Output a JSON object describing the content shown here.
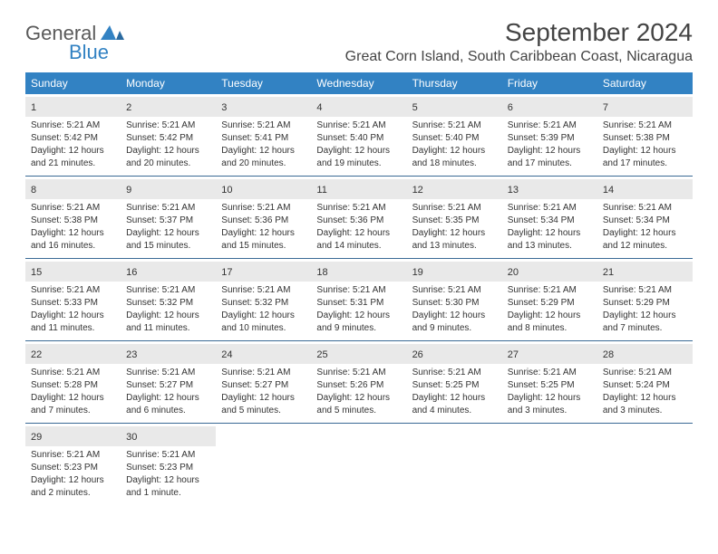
{
  "brand": {
    "name_general": "General",
    "name_blue": "Blue"
  },
  "title": "September 2024",
  "location": "Great Corn Island, South Caribbean Coast, Nicaragua",
  "weekdays": [
    "Sunday",
    "Monday",
    "Tuesday",
    "Wednesday",
    "Thursday",
    "Friday",
    "Saturday"
  ],
  "colors": {
    "header_bg": "#3282c3",
    "header_text": "#ffffff",
    "daynum_bg": "#e9e9e9",
    "week_divider": "#3a6a95",
    "page_bg": "#ffffff",
    "text": "#333333",
    "logo_gray": "#5a5a5a",
    "logo_blue": "#3282c3"
  },
  "typography": {
    "month_title_pt": 28,
    "location_pt": 16,
    "weekday_pt": 12,
    "daynum_pt": 11,
    "body_pt": 10
  },
  "grid": {
    "leading_blanks": 0,
    "rows": 5,
    "cols": 7
  },
  "days": [
    {
      "n": "1",
      "sunrise": "5:21 AM",
      "sunset": "5:42 PM",
      "daylight": "12 hours and 21 minutes."
    },
    {
      "n": "2",
      "sunrise": "5:21 AM",
      "sunset": "5:42 PM",
      "daylight": "12 hours and 20 minutes."
    },
    {
      "n": "3",
      "sunrise": "5:21 AM",
      "sunset": "5:41 PM",
      "daylight": "12 hours and 20 minutes."
    },
    {
      "n": "4",
      "sunrise": "5:21 AM",
      "sunset": "5:40 PM",
      "daylight": "12 hours and 19 minutes."
    },
    {
      "n": "5",
      "sunrise": "5:21 AM",
      "sunset": "5:40 PM",
      "daylight": "12 hours and 18 minutes."
    },
    {
      "n": "6",
      "sunrise": "5:21 AM",
      "sunset": "5:39 PM",
      "daylight": "12 hours and 17 minutes."
    },
    {
      "n": "7",
      "sunrise": "5:21 AM",
      "sunset": "5:38 PM",
      "daylight": "12 hours and 17 minutes."
    },
    {
      "n": "8",
      "sunrise": "5:21 AM",
      "sunset": "5:38 PM",
      "daylight": "12 hours and 16 minutes."
    },
    {
      "n": "9",
      "sunrise": "5:21 AM",
      "sunset": "5:37 PM",
      "daylight": "12 hours and 15 minutes."
    },
    {
      "n": "10",
      "sunrise": "5:21 AM",
      "sunset": "5:36 PM",
      "daylight": "12 hours and 15 minutes."
    },
    {
      "n": "11",
      "sunrise": "5:21 AM",
      "sunset": "5:36 PM",
      "daylight": "12 hours and 14 minutes."
    },
    {
      "n": "12",
      "sunrise": "5:21 AM",
      "sunset": "5:35 PM",
      "daylight": "12 hours and 13 minutes."
    },
    {
      "n": "13",
      "sunrise": "5:21 AM",
      "sunset": "5:34 PM",
      "daylight": "12 hours and 13 minutes."
    },
    {
      "n": "14",
      "sunrise": "5:21 AM",
      "sunset": "5:34 PM",
      "daylight": "12 hours and 12 minutes."
    },
    {
      "n": "15",
      "sunrise": "5:21 AM",
      "sunset": "5:33 PM",
      "daylight": "12 hours and 11 minutes."
    },
    {
      "n": "16",
      "sunrise": "5:21 AM",
      "sunset": "5:32 PM",
      "daylight": "12 hours and 11 minutes."
    },
    {
      "n": "17",
      "sunrise": "5:21 AM",
      "sunset": "5:32 PM",
      "daylight": "12 hours and 10 minutes."
    },
    {
      "n": "18",
      "sunrise": "5:21 AM",
      "sunset": "5:31 PM",
      "daylight": "12 hours and 9 minutes."
    },
    {
      "n": "19",
      "sunrise": "5:21 AM",
      "sunset": "5:30 PM",
      "daylight": "12 hours and 9 minutes."
    },
    {
      "n": "20",
      "sunrise": "5:21 AM",
      "sunset": "5:29 PM",
      "daylight": "12 hours and 8 minutes."
    },
    {
      "n": "21",
      "sunrise": "5:21 AM",
      "sunset": "5:29 PM",
      "daylight": "12 hours and 7 minutes."
    },
    {
      "n": "22",
      "sunrise": "5:21 AM",
      "sunset": "5:28 PM",
      "daylight": "12 hours and 7 minutes."
    },
    {
      "n": "23",
      "sunrise": "5:21 AM",
      "sunset": "5:27 PM",
      "daylight": "12 hours and 6 minutes."
    },
    {
      "n": "24",
      "sunrise": "5:21 AM",
      "sunset": "5:27 PM",
      "daylight": "12 hours and 5 minutes."
    },
    {
      "n": "25",
      "sunrise": "5:21 AM",
      "sunset": "5:26 PM",
      "daylight": "12 hours and 5 minutes."
    },
    {
      "n": "26",
      "sunrise": "5:21 AM",
      "sunset": "5:25 PM",
      "daylight": "12 hours and 4 minutes."
    },
    {
      "n": "27",
      "sunrise": "5:21 AM",
      "sunset": "5:25 PM",
      "daylight": "12 hours and 3 minutes."
    },
    {
      "n": "28",
      "sunrise": "5:21 AM",
      "sunset": "5:24 PM",
      "daylight": "12 hours and 3 minutes."
    },
    {
      "n": "29",
      "sunrise": "5:21 AM",
      "sunset": "5:23 PM",
      "daylight": "12 hours and 2 minutes."
    },
    {
      "n": "30",
      "sunrise": "5:21 AM",
      "sunset": "5:23 PM",
      "daylight": "12 hours and 1 minute."
    }
  ]
}
